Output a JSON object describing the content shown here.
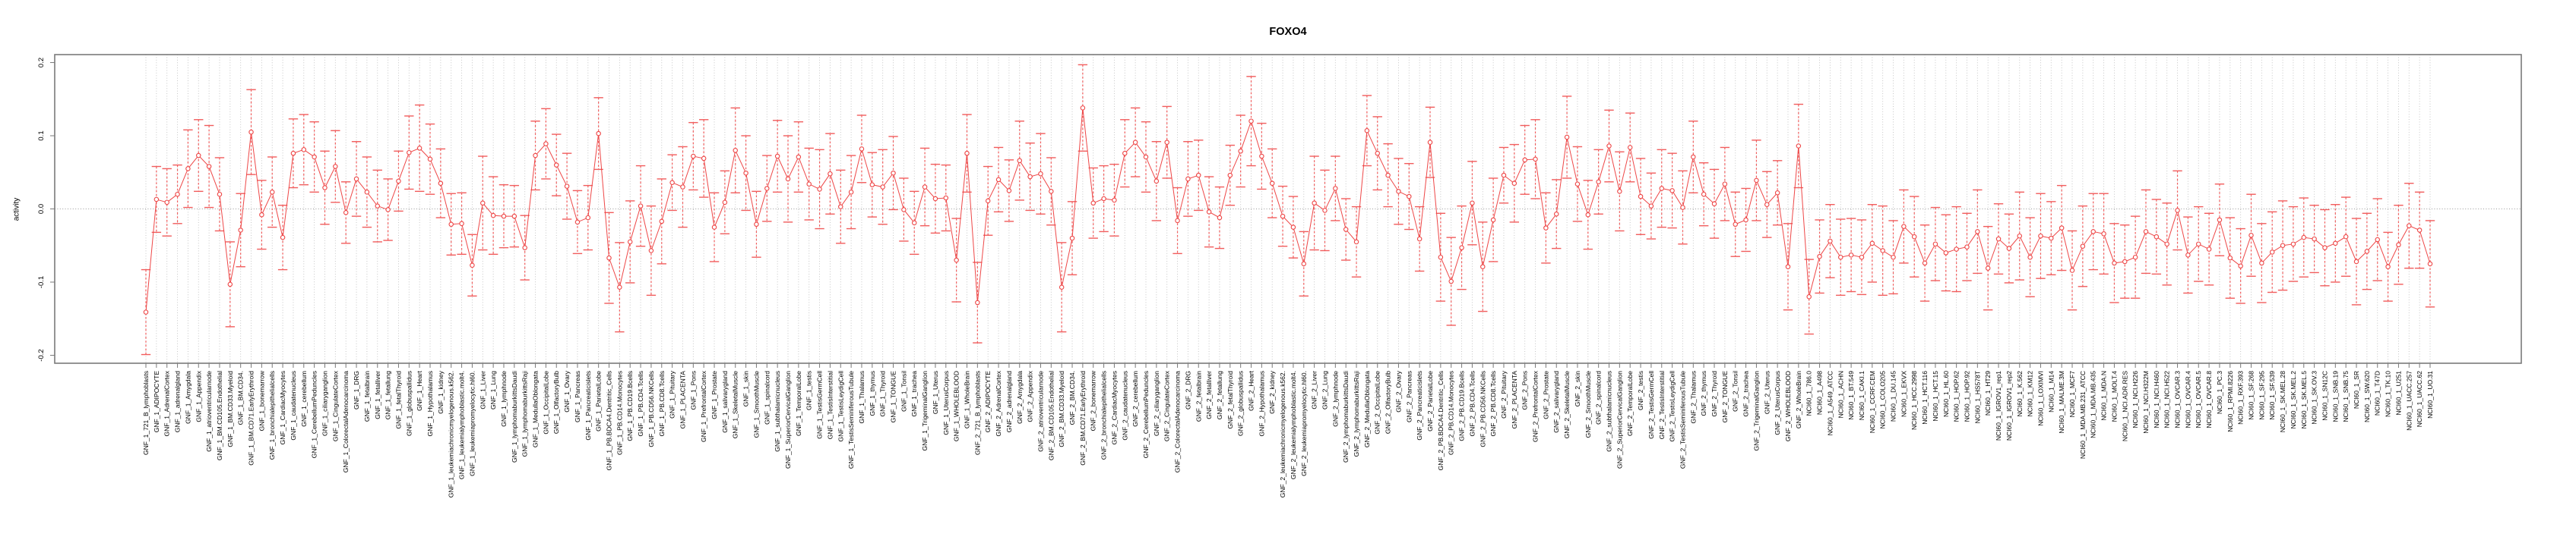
{
  "chart_data": {
    "type": "line",
    "title": "FOXO4",
    "ylabel": "activity",
    "xlabel": "",
    "legend_position": "none",
    "grid": "dotted vertical gridline per category; dotted horizontal line at y=0",
    "marker": "open-circle",
    "error_bars": true,
    "ylim": [
      -0.21,
      0.21
    ],
    "yticks": [
      0.2,
      0.1,
      0.0,
      -0.1,
      -0.2
    ],
    "ytick_labels": [
      "0.2",
      "0.1",
      "0.0",
      "-0.1",
      "-0.2"
    ],
    "colors": {
      "series": "#ee4747",
      "error_bar": "#f15d5d",
      "gridline": "#c0c0c0",
      "zero_line": "#9a9a9a",
      "axis": "#7a7a7a",
      "text": "#000000"
    },
    "categories": [
      "GNF_1_721_B_lymphoblasts",
      "GNF_1_ADIPOCYTE",
      "GNF_1_AdrenalCortex",
      "GNF_1_adrenalgland",
      "GNF_1_Amygdala",
      "GNF_1_Appendix",
      "GNF_1_atrioventricularnode",
      "GNF_1_BM.CD105.Endothelial",
      "GNF_1_BM.CD33.Myeloid",
      "GNF_1_BM.CD34.",
      "GNF_1_BM.CD71.EarlyErythroid",
      "GNF_1_bonemarrow",
      "GNF_1_bronchialepithelialcells",
      "GNF_1_CardiacMyocytes",
      "GNF_1_caudatenucleus",
      "GNF_1_cerebellum",
      "GNF_1_CerebellumPeduncles",
      "GNF_1_ciliaryganglion",
      "GNF_1_CingulateCortex",
      "GNF_1_ColorectalAdenocarcinoma",
      "GNF_1_DRG",
      "GNF_1_fetalbrain",
      "GNF_1_fetalliver",
      "GNF_1_fetallung",
      "GNF_1_fetalThyroid",
      "GNF_1_globuspallidus",
      "GNF_1_Heart",
      "GNF_1_Hypothalamus",
      "GNF_1_kidney",
      "GNF_1_leukemiachronicmyelogenous.k562.",
      "GNF_1_leukemialymphoblastic.molt4.",
      "GNF_1_leukemiapromyelocytic.hl60.",
      "GNF_1_Liver",
      "GNF_1_Lung",
      "GNF_1_lymphnode",
      "GNF_1_lymphomaburkittsDaudi",
      "GNF_1_lymphomaburkittsRaji",
      "GNF_1_MedullaOblongata",
      "GNF_1_OccipitalLobe",
      "GNF_1_OlfactoryBulb",
      "GNF_1_Ovary",
      "GNF_1_Pancreas",
      "GNF_1_Pancreaticislets",
      "GNF_1_ParietalLobe",
      "GNF_1_PB.BDCA4.Dentritic_Cells",
      "GNF_1_PB.CD14.Monocytes",
      "GNF_1_PB.CD19.Bcells",
      "GNF_1_PB.CD4.Tcells",
      "GNF_1_PB.CD56.NKCells",
      "GNF_1_PB.CD8.Tcells",
      "GNF_1_Pituitary",
      "GNF_1_PLACENTA",
      "GNF_1_Pons",
      "GNF_1_PrefrontalCortex",
      "GNF_1_Prostate",
      "GNF_1_salivarygland",
      "GNF_1_SkeletalMuscle",
      "GNF_1_skin",
      "GNF_1_SmoothMuscle",
      "GNF_1_spinalcord",
      "GNF_1_subthalamicnucleus",
      "GNF_1_SuperiorCervicalGanglion",
      "GNF_1_TemporalLobe",
      "GNF_1_testis",
      "GNF_1_TestisGermCell",
      "GNF_1_TestisInterstitial",
      "GNF_1_TestisLeydigCell",
      "GNF_1_TestisSeminiferousTubule",
      "GNF_1_Thalamus",
      "GNF_1_thymus",
      "GNF_1_Thyroid",
      "GNF_1_TONGUE",
      "GNF_1_Tonsil",
      "GNF_1_trachea",
      "GNF_1_TrigeminalGanglion",
      "GNF_1_Uterus",
      "GNF_1_UterusCorpus",
      "GNF_1_WHOLEBLOOD",
      "GNF_1_WholeBrain",
      "GNF_2_721_B_lymphoblasts",
      "GNF_2_ADIPOCYTE",
      "GNF_2_AdrenalCortex",
      "GNF_2_adrenalgland",
      "GNF_2_Amygdala",
      "GNF_2_Appendix",
      "GNF_2_atrioventricularnode",
      "GNF_2_BM.CD105.Endothelial",
      "GNF_2_BM.CD33.Myeloid",
      "GNF_2_BM.CD34.",
      "GNF_2_BM.CD71.EarlyErythroid",
      "GNF_2_bonemarrow",
      "GNF_2_bronchialepithelialcells",
      "GNF_2_CardiacMyocytes",
      "GNF_2_caudatenucleus",
      "GNF_2_cerebellum",
      "GNF_2_CerebellumPeduncles",
      "GNF_2_ciliaryganglion",
      "GNF_2_CingulateCortex",
      "GNF_2_ColorectalAdenocarcinoma",
      "GNF_2_DRG",
      "GNF_2_fetalbrain",
      "GNF_2_fetalliver",
      "GNF_2_fetallung",
      "GNF_2_fetalThyroid",
      "GNF_2_globuspallidus",
      "GNF_2_Heart",
      "GNF_2_Hypothalamus",
      "GNF_2_kidney",
      "GNF_2_leukemiachronicmyelogenous.k562.",
      "GNF_2_leukemialymphoblastic.molt4.",
      "GNF_2_leukemiapromyelocytic.hl60.",
      "GNF_2_Liver",
      "GNF_2_Lung",
      "GNF_2_lymphnode",
      "GNF_2_lymphomaburkittsDaudi",
      "GNF_2_lymphomaburkittsRaji",
      "GNF_2_MedullaOblongata",
      "GNF_2_OccipitalLobe",
      "GNF_2_OlfactoryBulb",
      "GNF_2_Ovary",
      "GNF_2_Pancreas",
      "GNF_2_Pancreaticislets",
      "GNF_2_ParietalLobe",
      "GNF_2_PB.BDCA4.Dentritic_Cells",
      "GNF_2_PB.CD14.Monocytes",
      "GNF_2_PB.CD19.Bcells",
      "GNF_2_PB.CD4.Tcells",
      "GNF_2_PB.CD56.NKCells",
      "GNF_2_PB.CD8.Tcells",
      "GNF_2_Pituitary",
      "GNF_2_PLACENTA",
      "GNF_2_Pons",
      "GNF_2_PrefrontalCortex",
      "GNF_2_Prostate",
      "GNF_2_salivarygland",
      "GNF_2_SkeletalMuscle",
      "GNF_2_skin",
      "GNF_2_SmoothMuscle",
      "GNF_2_spinalcord",
      "GNF_2_subthalamicnucleus",
      "GNF_2_SuperiorCervicalGanglion",
      "GNF_2_TemporalLobe",
      "GNF_2_testis",
      "GNF_2_TestisGermCell",
      "GNF_2_TestisInterstitial",
      "GNF_2_TestisLeydigCell",
      "GNF_2_TestisSeminiferousTubule",
      "GNF_2_Thalamus",
      "GNF_2_thymus",
      "GNF_2_Thyroid",
      "GNF_2_TONGUE",
      "GNF_2_Tonsil",
      "GNF_2_trachea",
      "GNF_2_TrigeminalGanglion",
      "GNF_2_Uterus",
      "GNF_2_UterusCorpus",
      "GNF_2_WHOLEBLOOD",
      "GNF_2_WholeBrain",
      "NCI60_1_786.0",
      "NCI60_1_A498",
      "NCI60_1_A549_ATCC",
      "NCI60_1_ACHN",
      "NCI60_1_BT.549",
      "NCI60_1_CAKI.1",
      "NCI60_1_CCRF.CEM",
      "NCI60_1_COLO205",
      "NCI60_1_DU.145",
      "NCI60_1_EKVX",
      "NCI60_1_HCC.2998",
      "NCI60_1_HCT.116",
      "NCI60_1_HCT.15",
      "NCI60_1_HL.60",
      "NCI60_1_HOP.62",
      "NCI60_1_HOP.92",
      "NCI60_1_HS578T",
      "NCI60_1_HT29",
      "NCI60_1_IGROV1_rep1",
      "NCI60_1_IGROV1_rep2",
      "NCI60_1_K.562",
      "NCI60_1_KM12",
      "NCI60_1_LOXIMVI",
      "NCI60_1_M14",
      "NCI60_1_MALME.3M",
      "NCI60_1_MCF7",
      "NCI60_1_MDA.MB.231_ATCC",
      "NCI60_1_MDA.MB.435",
      "NCI60_1_MDA.N",
      "NCI60_1_MOLT.4",
      "NCI60_1_NCI.ADR.RES",
      "NCI60_1_NCI.H226",
      "NCI60_1_NCI.H322M",
      "NCI60_1_NCI.H460",
      "NCI60_1_NCI.H522",
      "NCI60_1_OVCAR.3",
      "NCI60_1_OVCAR.4",
      "NCI60_1_OVCAR.5",
      "NCI60_1_OVCAR.8",
      "NCI60_1_PC.3",
      "NCI60_1_RPMI.8226",
      "NCI60_1_RXF.393",
      "NCI60_1_SF.268",
      "NCI60_1_SF.295",
      "NCI60_1_SF.539",
      "NCI60_1_SK.MEL.28",
      "NCI60_1_SK.MEL.2",
      "NCI60_1_SK.MEL.5",
      "NCI60_1_SK.OV.3",
      "NCI60_1_SN12C",
      "NCI60_1_SNB.19",
      "NCI60_1_SNB.75",
      "NCI60_1_SR",
      "NCI60_1_SW.620",
      "NCI60_1_T47D",
      "NCI60_1_TK.10",
      "NCI60_1_U251",
      "NCI60_1_UACC.257",
      "NCI60_1_UACC.62",
      "NCI60_1_UO.31"
    ],
    "values": [
      -0.141,
      0.013,
      0.009,
      0.02,
      0.055,
      0.073,
      0.058,
      0.02,
      -0.103,
      -0.029,
      0.105,
      -0.008,
      0.023,
      -0.039,
      0.076,
      0.081,
      0.071,
      0.029,
      0.058,
      -0.005,
      0.041,
      0.023,
      0.004,
      -0.001,
      0.038,
      0.077,
      0.083,
      0.068,
      0.035,
      -0.021,
      -0.02,
      -0.077,
      0.008,
      -0.009,
      -0.01,
      -0.01,
      -0.053,
      0.073,
      0.089,
      0.06,
      0.031,
      -0.018,
      -0.012,
      0.103,
      -0.067,
      -0.107,
      -0.045,
      0.004,
      -0.057,
      -0.017,
      0.036,
      0.03,
      0.072,
      0.069,
      -0.025,
      0.009,
      0.08,
      0.049,
      -0.021,
      0.028,
      0.072,
      0.041,
      0.071,
      0.034,
      0.027,
      0.048,
      0.003,
      0.023,
      0.082,
      0.033,
      0.03,
      0.049,
      -0.001,
      -0.019,
      0.03,
      0.014,
      0.015,
      -0.07,
      0.076,
      -0.128,
      0.011,
      0.04,
      0.025,
      0.066,
      0.044,
      0.048,
      0.024,
      -0.107,
      -0.04,
      0.138,
      0.008,
      0.014,
      0.012,
      0.076,
      0.091,
      0.071,
      0.038,
      0.091,
      -0.016,
      0.041,
      0.046,
      -0.004,
      -0.012,
      0.046,
      0.079,
      0.12,
      0.072,
      0.035,
      -0.01,
      -0.025,
      -0.075,
      0.008,
      -0.002,
      0.028,
      -0.028,
      -0.045,
      0.107,
      0.076,
      0.046,
      0.024,
      0.017,
      -0.041,
      0.091,
      -0.066,
      -0.099,
      -0.053,
      0.008,
      -0.079,
      -0.015,
      0.046,
      0.035,
      0.067,
      0.068,
      -0.026,
      -0.007,
      0.098,
      0.034,
      -0.008,
      0.037,
      0.086,
      0.024,
      0.084,
      0.017,
      0.004,
      0.028,
      0.025,
      0.002,
      0.071,
      0.02,
      0.007,
      0.034,
      -0.021,
      -0.015,
      0.039,
      0.006,
      0.022,
      -0.079,
      0.086,
      -0.12,
      -0.065,
      -0.044,
      -0.066,
      -0.063,
      -0.066,
      -0.047,
      -0.057,
      -0.066,
      -0.024,
      -0.038,
      -0.074,
      -0.048,
      -0.06,
      -0.055,
      -0.052,
      -0.031,
      -0.081,
      -0.041,
      -0.054,
      -0.037,
      -0.066,
      -0.037,
      -0.04,
      -0.026,
      -0.084,
      -0.051,
      -0.031,
      -0.034,
      -0.074,
      -0.072,
      -0.066,
      -0.031,
      -0.038,
      -0.048,
      -0.002,
      -0.063,
      -0.048,
      -0.055,
      -0.015,
      -0.067,
      -0.078,
      -0.036,
      -0.074,
      -0.059,
      -0.05,
      -0.048,
      -0.039,
      -0.041,
      -0.053,
      -0.047,
      -0.038,
      -0.072,
      -0.058,
      -0.042,
      -0.079,
      -0.049,
      -0.023,
      -0.029,
      -0.075
    ],
    "errors": [
      0.058,
      0.045,
      0.046,
      0.04,
      0.053,
      0.049,
      0.056,
      0.05,
      0.058,
      0.05,
      0.058,
      0.047,
      0.048,
      0.044,
      0.047,
      0.048,
      0.048,
      0.05,
      0.049,
      0.042,
      0.051,
      0.048,
      0.049,
      0.042,
      0.041,
      0.05,
      0.059,
      0.048,
      0.047,
      0.042,
      0.042,
      0.042,
      0.064,
      0.053,
      0.043,
      0.042,
      0.044,
      0.047,
      0.048,
      0.042,
      0.045,
      0.043,
      0.044,
      0.049,
      0.062,
      0.061,
      0.056,
      0.055,
      0.061,
      0.058,
      0.038,
      0.055,
      0.046,
      0.053,
      0.047,
      0.043,
      0.058,
      0.051,
      0.045,
      0.045,
      0.049,
      0.059,
      0.048,
      0.049,
      0.054,
      0.055,
      0.05,
      0.05,
      0.046,
      0.044,
      0.051,
      0.05,
      0.043,
      0.043,
      0.053,
      0.047,
      0.045,
      0.057,
      0.053,
      0.055,
      0.047,
      0.044,
      0.042,
      0.054,
      0.046,
      0.055,
      0.046,
      0.061,
      0.05,
      0.059,
      0.048,
      0.045,
      0.049,
      0.046,
      0.047,
      0.048,
      0.054,
      0.049,
      0.045,
      0.051,
      0.048,
      0.048,
      0.042,
      0.041,
      0.049,
      0.061,
      0.045,
      0.047,
      0.041,
      0.042,
      0.044,
      0.064,
      0.055,
      0.044,
      0.042,
      0.048,
      0.048,
      0.05,
      0.043,
      0.045,
      0.045,
      0.044,
      0.048,
      0.06,
      0.06,
      0.057,
      0.057,
      0.061,
      0.057,
      0.038,
      0.053,
      0.047,
      0.054,
      0.048,
      0.047,
      0.056,
      0.051,
      0.047,
      0.044,
      0.049,
      0.054,
      0.047,
      0.052,
      0.045,
      0.053,
      0.051,
      0.05,
      0.049,
      0.043,
      0.047,
      0.05,
      0.044,
      0.043,
      0.055,
      0.045,
      0.044,
      0.059,
      0.057,
      0.051,
      0.05,
      0.05,
      0.052,
      0.05,
      0.051,
      0.053,
      0.061,
      0.05,
      0.05,
      0.055,
      0.052,
      0.05,
      0.052,
      0.058,
      0.046,
      0.057,
      0.057,
      0.048,
      0.047,
      0.06,
      0.054,
      0.058,
      0.05,
      0.058,
      0.054,
      0.055,
      0.052,
      0.055,
      0.054,
      0.05,
      0.056,
      0.057,
      0.051,
      0.056,
      0.054,
      0.052,
      0.051,
      0.049,
      0.049,
      0.055,
      0.051,
      0.056,
      0.054,
      0.055,
      0.061,
      0.051,
      0.054,
      0.046,
      0.052,
      0.053,
      0.054,
      0.059,
      0.052,
      0.056,
      0.047,
      0.054,
      0.058,
      0.052,
      0.059
    ]
  }
}
